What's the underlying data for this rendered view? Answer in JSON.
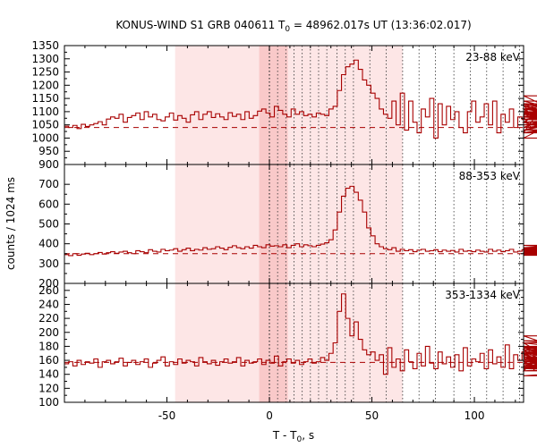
{
  "chart_data": {
    "type": "line",
    "title": "KONUS-WIND S1 GRB 040611 T",
    "title_sub": "0",
    "title_rest": " = 48962.017s UT (13:36:02.017)",
    "xlabel": "T - T",
    "xlabel_sub": "0",
    "xlabel_rest": ", s",
    "ylabel": "counts / 1024 ms",
    "xlim": [
      -100,
      124
    ],
    "xticks": [
      -50,
      0,
      50,
      100
    ],
    "line_color": "#a80000",
    "shade_outer": [
      -46,
      65
    ],
    "shade_inner": [
      -5,
      9
    ],
    "dotted_lines": [
      0,
      4,
      8,
      12,
      16,
      20,
      24,
      28,
      33,
      37,
      41,
      49,
      57,
      65,
      73,
      81,
      90,
      98,
      106,
      114,
      122
    ],
    "panels": [
      {
        "band": "23-88 keV",
        "ylim": [
          900,
          1350
        ],
        "yticks": [
          900,
          950,
          1000,
          1050,
          1100,
          1150,
          1200,
          1250,
          1300,
          1350
        ],
        "background": 1040,
        "step": 2.048,
        "t0": -100,
        "values": [
          1045,
          1040,
          1048,
          1036,
          1052,
          1044,
          1050,
          1055,
          1062,
          1050,
          1072,
          1080,
          1075,
          1090,
          1060,
          1078,
          1085,
          1095,
          1070,
          1100,
          1080,
          1090,
          1070,
          1065,
          1080,
          1095,
          1068,
          1085,
          1075,
          1060,
          1088,
          1100,
          1070,
          1090,
          1100,
          1078,
          1092,
          1080,
          1070,
          1096,
          1082,
          1090,
          1070,
          1100,
          1075,
          1085,
          1102,
          1110,
          1095,
          1080,
          1120,
          1105,
          1090,
          1080,
          1110,
          1090,
          1100,
          1085,
          1090,
          1080,
          1095,
          1090,
          1085,
          1110,
          1120,
          1180,
          1240,
          1270,
          1280,
          1295,
          1260,
          1220,
          1200,
          1170,
          1150,
          1110,
          1090,
          1075,
          1140,
          1050,
          1170,
          1030,
          1140,
          1060,
          1020,
          1110,
          1080,
          1150,
          1000,
          1130,
          1050,
          1120,
          1070,
          1100,
          1040,
          1020,
          1100,
          1140,
          1060,
          1080,
          1130,
          1050,
          1140,
          1020,
          1090,
          1060,
          1110,
          1040,
          1080,
          1070,
          1130,
          1080,
          1020,
          1100,
          1060,
          1110,
          1040,
          1090,
          1130,
          1070,
          1100,
          1060,
          1000,
          1110,
          1140,
          1080,
          1160,
          1030,
          1100,
          1060,
          1070,
          1120,
          1050,
          1090,
          1030,
          1110,
          1060,
          1080,
          1120,
          1020,
          1100,
          1060,
          1070,
          1130,
          1040,
          1090,
          1050,
          1110,
          1020,
          1080,
          1070,
          1060,
          1100,
          1050,
          1080,
          1020,
          1060,
          1040,
          1070,
          1110,
          1050,
          1090,
          1060,
          1040,
          1080,
          1100,
          1050,
          1130,
          1030,
          1060,
          1040,
          1070,
          1110,
          1040,
          1060,
          1090,
          1050,
          1080,
          1100,
          1040,
          1060,
          1030,
          1050,
          1080,
          1020,
          1060,
          1040,
          1070,
          1090,
          1050,
          1030,
          1060,
          1040,
          1050,
          1030,
          1060,
          1040,
          1030,
          1050,
          1020,
          1060,
          1040,
          1030,
          1050,
          1040,
          1020,
          1030,
          1060,
          1040,
          1020,
          1050,
          1030
        ]
      },
      {
        "band": "88-353 keV",
        "ylim": [
          200,
          800
        ],
        "yticks": [
          200,
          300,
          400,
          500,
          600,
          700
        ],
        "background": 350,
        "step": 2.048,
        "t0": -100,
        "values": [
          345,
          340,
          350,
          342,
          348,
          352,
          345,
          350,
          356,
          348,
          355,
          360,
          352,
          358,
          362,
          355,
          350,
          365,
          360,
          355,
          370,
          362,
          358,
          372,
          365,
          368,
          375,
          362,
          370,
          378,
          365,
          372,
          368,
          380,
          372,
          375,
          385,
          378,
          370,
          382,
          390,
          380,
          375,
          385,
          378,
          392,
          385,
          380,
          395,
          388,
          390,
          385,
          395,
          380,
          392,
          400,
          385,
          395,
          390,
          385,
          392,
          398,
          405,
          420,
          470,
          560,
          640,
          680,
          690,
          660,
          620,
          560,
          480,
          440,
          400,
          385,
          375,
          370,
          380,
          362,
          372,
          365,
          370,
          360,
          368,
          372,
          362,
          365,
          370,
          360,
          368,
          362,
          366,
          358,
          372,
          362,
          365,
          360,
          368,
          362,
          358,
          372,
          362,
          368,
          360,
          365,
          372,
          358,
          362,
          370,
          365,
          360,
          366,
          372,
          362,
          368,
          360,
          356,
          368,
          380,
          392,
          375,
          368,
          370,
          362,
          368,
          360,
          365,
          358,
          362,
          368,
          360,
          365,
          358,
          362,
          360,
          355,
          362,
          358,
          350,
          362,
          365,
          358,
          360,
          352,
          362,
          356,
          350,
          358,
          354,
          360,
          352,
          356,
          350,
          358,
          352,
          360,
          346,
          355,
          350,
          358,
          352,
          346,
          360,
          352,
          348,
          356,
          362,
          350,
          354,
          348,
          356,
          350,
          345,
          352,
          348,
          356,
          342,
          350,
          348,
          354,
          346,
          352,
          348,
          355,
          345,
          350,
          352,
          346,
          350,
          344,
          352,
          348,
          354,
          346,
          350,
          348,
          344,
          352,
          346,
          350,
          348,
          344,
          352,
          346,
          350,
          348
        ]
      },
      {
        "band": "353-1334 keV",
        "ylim": [
          100,
          270
        ],
        "yticks": [
          100,
          120,
          140,
          160,
          180,
          200,
          220,
          240,
          260
        ],
        "background": 157,
        "step": 2.048,
        "t0": -100,
        "values": [
          155,
          158,
          152,
          160,
          154,
          158,
          156,
          162,
          150,
          158,
          160,
          155,
          158,
          163,
          152,
          157,
          160,
          154,
          158,
          162,
          150,
          156,
          160,
          165,
          152,
          158,
          154,
          162,
          156,
          160,
          158,
          152,
          164,
          158,
          155,
          160,
          153,
          158,
          162,
          156,
          158,
          164,
          152,
          160,
          156,
          158,
          162,
          154,
          160,
          156,
          166,
          152,
          158,
          162,
          156,
          160,
          154,
          158,
          162,
          156,
          158,
          164,
          160,
          170,
          185,
          230,
          255,
          220,
          195,
          215,
          190,
          175,
          168,
          172,
          160,
          168,
          140,
          178,
          150,
          162,
          145,
          175,
          158,
          148,
          170,
          152,
          180,
          156,
          148,
          172,
          155,
          165,
          150,
          168,
          145,
          178,
          152,
          162,
          158,
          170,
          148,
          175,
          155,
          165,
          150,
          182,
          148,
          168,
          160,
          172,
          152,
          178,
          145,
          165,
          158,
          175,
          150,
          168,
          155,
          185,
          148,
          172,
          160,
          165,
          152,
          178,
          150,
          168,
          195,
          155,
          172,
          148,
          165,
          162,
          158,
          180,
          150,
          168,
          160,
          172,
          152,
          148,
          165,
          158,
          175,
          150,
          168,
          160,
          155,
          172,
          148,
          165,
          162,
          185,
          152,
          168,
          158,
          178,
          150,
          165,
          160,
          172,
          148,
          168,
          155,
          162,
          175,
          150,
          188,
          160,
          168,
          152,
          178,
          145,
          165,
          158,
          172,
          150,
          168,
          162,
          180,
          148,
          165,
          160,
          172,
          152,
          168,
          158,
          162,
          180,
          150,
          165,
          138,
          170,
          158,
          162,
          150,
          168,
          160,
          155,
          172,
          148,
          165,
          158,
          162,
          150,
          168
        ]
      }
    ]
  }
}
